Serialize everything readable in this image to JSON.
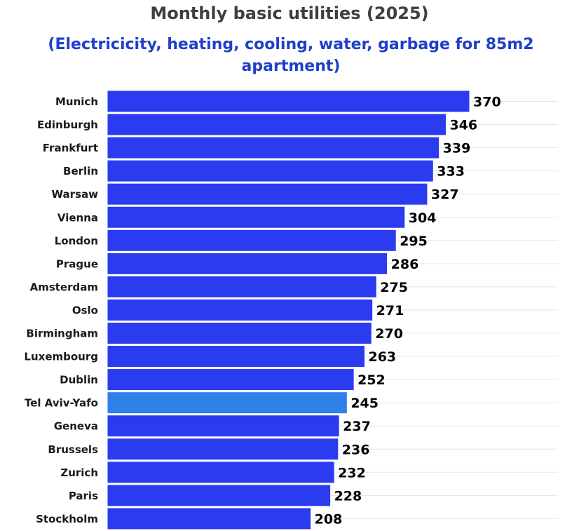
{
  "chart_data": {
    "type": "bar",
    "orientation": "horizontal",
    "title": "Monthly basic utilities (2025)",
    "subtitle": "(Electricicity, heating, cooling, water, garbage for 85m2 apartment)",
    "categories": [
      "Munich",
      "Edinburgh",
      "Frankfurt",
      "Berlin",
      "Warsaw",
      "Vienna",
      "London",
      "Prague",
      "Amsterdam",
      "Oslo",
      "Birmingham",
      "Luxembourg",
      "Dublin",
      "Tel Aviv-Yafo",
      "Geneva",
      "Brussels",
      "Zurich",
      "Paris",
      "Stockholm"
    ],
    "values": [
      370,
      346,
      339,
      333,
      327,
      304,
      295,
      286,
      275,
      271,
      270,
      263,
      252,
      245,
      237,
      236,
      232,
      228,
      208
    ],
    "xlim": [
      0,
      370
    ],
    "grid": true,
    "highlight_category": "Tel Aviv-Yafo"
  },
  "colors": {
    "title": "#3f3f3f",
    "subtitle": "#1f3fc9",
    "bar": "#2b3bf0",
    "bar_highlight": "#2f80e8",
    "grid": "#e6e6e6",
    "bar_edge": "#ffffff"
  }
}
